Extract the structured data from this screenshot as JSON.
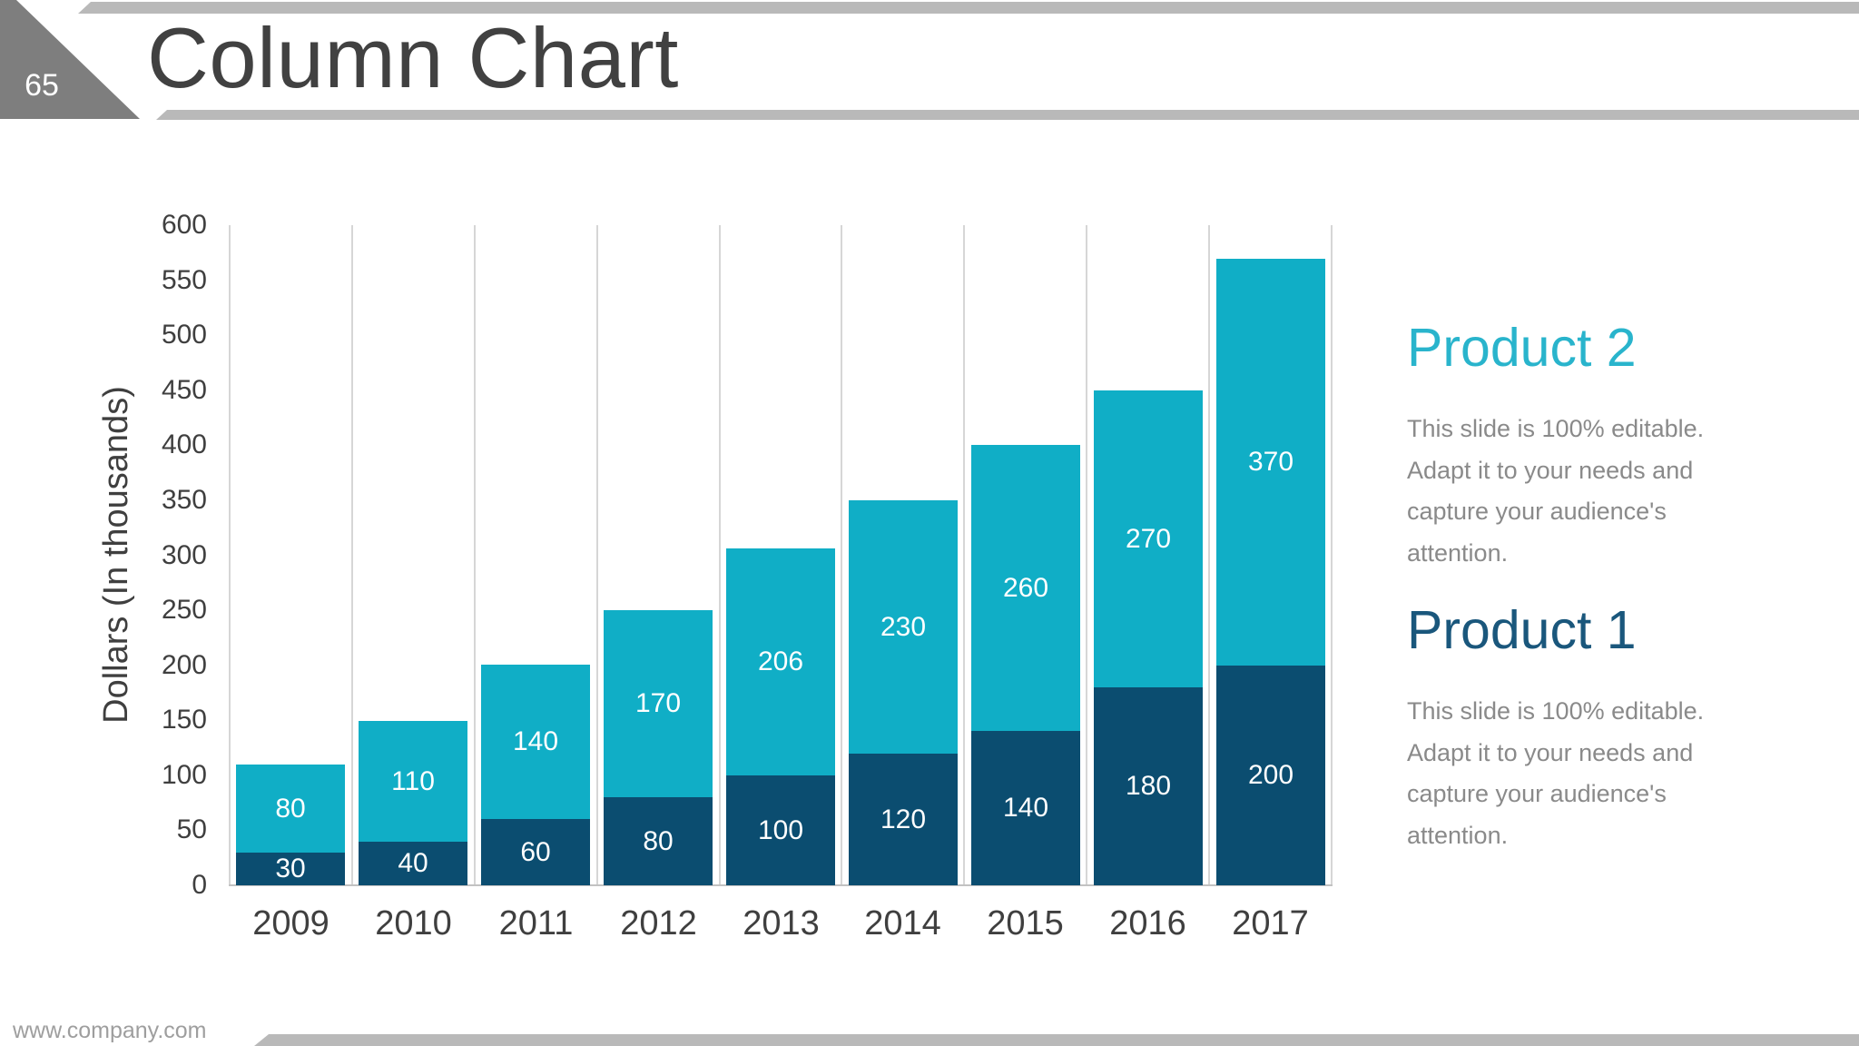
{
  "slide": {
    "number": "65",
    "title": "Column Chart",
    "footer_url": "www.company.com"
  },
  "chart_data": {
    "type": "bar",
    "stacked": true,
    "categories": [
      "2009",
      "2010",
      "2011",
      "2012",
      "2013",
      "2014",
      "2015",
      "2016",
      "2017"
    ],
    "series": [
      {
        "name": "Product 1",
        "color": "#0b4d70",
        "values": [
          30,
          40,
          60,
          80,
          100,
          120,
          140,
          180,
          200
        ]
      },
      {
        "name": "Product 2",
        "color": "#10aec6",
        "values": [
          80,
          110,
          140,
          170,
          206,
          230,
          260,
          270,
          370
        ]
      }
    ],
    "ylabel": "Dollars (In thousands)",
    "ylim": [
      0,
      600
    ],
    "ytick_step": 50,
    "grid": "vertical-between-categories-only",
    "value_label_color": "#ffffff",
    "legend_position": "right-text-blocks"
  },
  "legend": {
    "sections": [
      {
        "heading": "Product 2",
        "heading_color": "#29b4cc",
        "lines": [
          "This slide is 100% editable.",
          "Adapt it to your needs and",
          "capture your audience's",
          "attention."
        ]
      },
      {
        "heading": "Product 1",
        "heading_color": "#1a577c",
        "lines": [
          "This slide is 100% editable.",
          "Adapt it to your needs and",
          "capture your audience's",
          "attention."
        ]
      }
    ]
  },
  "colors": {
    "strip_gray": "#b9b9b9",
    "triangle_gray": "#7e7e7e",
    "title_text": "#414141",
    "axis_text": "#3f3f3f",
    "gridline": "#d6d6d6",
    "baseline": "#c2c2c2",
    "body_text": "#8a8a8a",
    "footer_text": "#9e9e9e"
  }
}
